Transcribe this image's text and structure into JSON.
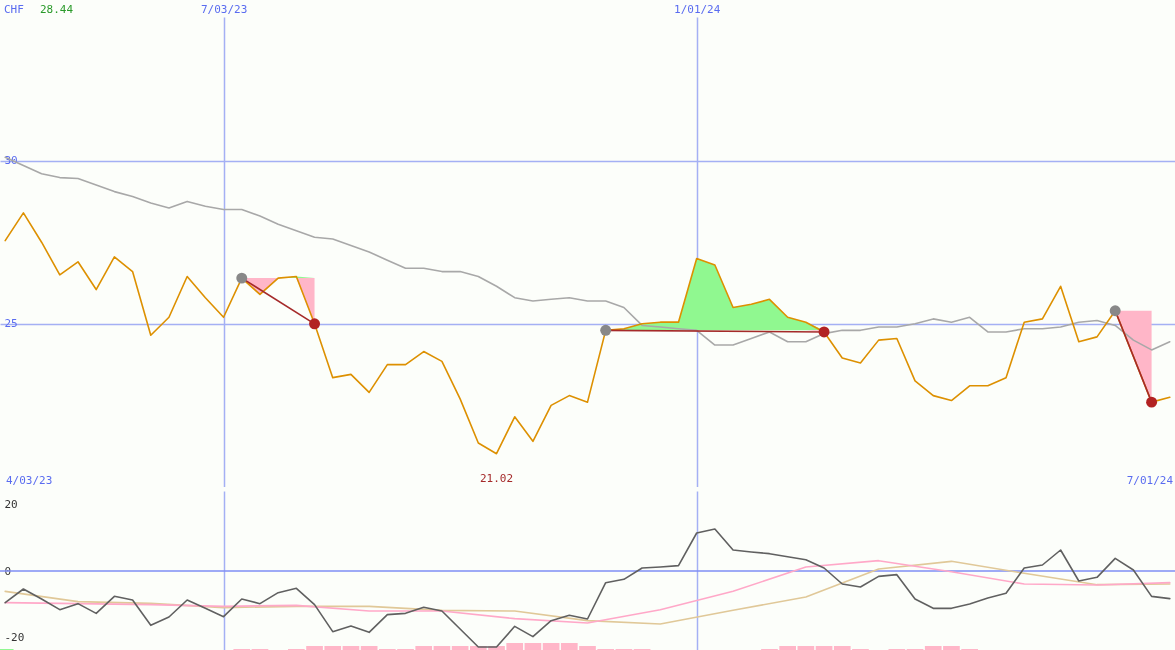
{
  "chart_data": [
    {
      "type": "line",
      "ylabel": "CHF",
      "annotations": [
        "28.44",
        "4/03/23",
        "7/01/24",
        {
          "text": "21.02",
          "x": "2023-10-16",
          "y": 21.02
        }
      ],
      "x": [
        "2023-04-10",
        "2023-04-17",
        "2023-04-24",
        "2023-05-01",
        "2023-05-08",
        "2023-05-15",
        "2023-05-22",
        "2023-05-29",
        "2023-06-05",
        "2023-06-12",
        "2023-06-19",
        "2023-06-26",
        "2023-07-03",
        "2023-07-10",
        "2023-07-17",
        "2023-07-24",
        "2023-07-31",
        "2023-08-07",
        "2023-08-14",
        "2023-08-21",
        "2023-08-28",
        "2023-09-04",
        "2023-09-11",
        "2023-09-18",
        "2023-09-25",
        "2023-10-02",
        "2023-10-09",
        "2023-10-16",
        "2023-10-23",
        "2023-10-30",
        "2023-11-06",
        "2023-11-13",
        "2023-11-20",
        "2023-11-27",
        "2023-12-04",
        "2023-12-11",
        "2023-12-18",
        "2023-12-25",
        "2024-01-01",
        "2024-01-08",
        "2024-01-15",
        "2024-01-22",
        "2024-01-29",
        "2024-02-05",
        "2024-02-12",
        "2024-02-19",
        "2024-02-26",
        "2024-03-04",
        "2024-03-11",
        "2024-03-18",
        "2024-03-25",
        "2024-04-01",
        "2024-04-08",
        "2024-04-15",
        "2024-04-22",
        "2024-04-29",
        "2024-05-06",
        "2024-05-13",
        "2024-05-20",
        "2024-05-27",
        "2024-06-03",
        "2024-06-10",
        "2024-06-17",
        "2024-06-24",
        "2024-07-01"
      ],
      "series": [
        {
          "color": "#a8a8a8",
          "values": [
            30.1,
            29.85,
            29.6,
            29.48,
            29.45,
            29.25,
            29.05,
            28.9,
            28.7,
            28.55,
            28.75,
            28.6,
            28.5,
            28.5,
            28.3,
            28.05,
            27.85,
            27.65,
            27.6,
            27.4,
            27.2,
            26.95,
            26.7,
            26.7,
            26.6,
            26.6,
            26.45,
            26.15,
            25.8,
            25.7,
            25.75,
            25.8,
            25.7,
            25.7,
            25.5,
            24.95,
            24.9,
            24.85,
            24.8,
            24.35,
            24.35,
            24.55,
            24.75,
            24.45,
            24.45,
            24.7,
            24.8,
            24.8,
            24.9,
            24.9,
            25.0,
            25.15,
            25.05,
            25.2,
            24.75,
            24.75,
            24.85,
            24.85,
            24.9,
            25.05,
            25.1,
            24.95,
            24.5,
            24.2,
            24.45
          ]
        },
        {
          "color": "#dd9000",
          "values": [
            27.55,
            28.4,
            27.5,
            26.5,
            26.9,
            26.05,
            27.05,
            26.6,
            24.65,
            25.2,
            26.45,
            25.8,
            25.2,
            26.4,
            25.9,
            26.4,
            26.45,
            25.0,
            23.35,
            23.45,
            22.9,
            23.75,
            23.75,
            24.15,
            23.85,
            22.7,
            21.35,
            21.02,
            22.15,
            21.4,
            22.5,
            22.8,
            22.6,
            24.8,
            24.85,
            25.0,
            25.05,
            25.05,
            27.0,
            26.8,
            25.5,
            25.6,
            25.75,
            25.2,
            25.05,
            24.75,
            23.95,
            23.8,
            24.5,
            24.55,
            23.25,
            22.8,
            22.65,
            23.1,
            23.1,
            23.35,
            25.05,
            25.15,
            26.15,
            24.45,
            24.6,
            25.4,
            24.0,
            22.6,
            22.75
          ]
        },
        {
          "color": "#a52a2a",
          "x": [
            "2023-07-10",
            "2023-08-07"
          ],
          "values": [
            26.4,
            25.0
          ]
        },
        {
          "color": "#a52a2a",
          "x": [
            "2023-11-27",
            "2024-02-19"
          ],
          "values": [
            24.8,
            24.75
          ]
        },
        {
          "color": "#a52a2a",
          "x": [
            "2024-06-10",
            "2024-06-24"
          ],
          "values": [
            25.4,
            22.6
          ]
        },
        {
          "type": "scatter",
          "color": "#888888",
          "x": [
            "2023-07-10",
            "2023-11-27",
            "2024-06-10"
          ],
          "values": [
            26.4,
            24.8,
            25.4
          ]
        },
        {
          "type": "scatter",
          "color": "#b22222",
          "x": [
            "2023-08-07",
            "2024-02-19",
            "2024-06-24"
          ],
          "values": [
            25.0,
            24.75,
            22.6
          ]
        }
      ],
      "xlim": [
        "2023-04-08",
        "2024-07-03"
      ],
      "xticks": [
        {
          "value": "2023-07-03",
          "label": "7/03/23"
        },
        {
          "value": "2024-01-01",
          "label": "1/01/24"
        }
      ],
      "ylim": [
        20,
        34.4
      ],
      "yticks": [
        25,
        30
      ],
      "grid": true
    },
    {
      "type": "line",
      "tick_labels": "y",
      "x": [
        "2023-04-10",
        "2023-04-17",
        "2023-04-24",
        "2023-05-01",
        "2023-05-08",
        "2023-05-15",
        "2023-05-22",
        "2023-05-29",
        "2023-06-05",
        "2023-06-12",
        "2023-06-19",
        "2023-06-26",
        "2023-07-03",
        "2023-07-10",
        "2023-07-17",
        "2023-07-24",
        "2023-07-31",
        "2023-08-07",
        "2023-08-14",
        "2023-08-21",
        "2023-08-28",
        "2023-09-04",
        "2023-09-11",
        "2023-09-18",
        "2023-09-25",
        "2023-10-02",
        "2023-10-09",
        "2023-10-16",
        "2023-10-23",
        "2023-10-30",
        "2023-11-06",
        "2023-11-13",
        "2023-11-20",
        "2023-11-27",
        "2023-12-04",
        "2023-12-11",
        "2023-12-18",
        "2023-12-25",
        "2024-01-01",
        "2024-01-08",
        "2024-01-15",
        "2024-01-22",
        "2024-01-29",
        "2024-02-05",
        "2024-02-12",
        "2024-02-19",
        "2024-02-26",
        "2024-03-04",
        "2024-03-11",
        "2024-03-18",
        "2024-03-25",
        "2024-04-01",
        "2024-04-08",
        "2024-04-15",
        "2024-04-22",
        "2024-04-29",
        "2024-05-06",
        "2024-05-13",
        "2024-05-20",
        "2024-05-27",
        "2024-06-03",
        "2024-06-10",
        "2024-06-17",
        "2024-06-24",
        "2024-07-01"
      ],
      "series": [
        {
          "type": "bar",
          "x": [
            "2023-04-10",
            "2023-07-10",
            "2023-07-17",
            "2023-07-31",
            "2023-08-07",
            "2023-08-14",
            "2023-08-21",
            "2023-08-28",
            "2023-09-04",
            "2023-09-11",
            "2023-09-18",
            "2023-09-25",
            "2023-10-02",
            "2023-10-09",
            "2023-10-16",
            "2023-10-23",
            "2023-10-30",
            "2023-11-06",
            "2023-11-13",
            "2023-11-20",
            "2023-11-27",
            "2023-12-04",
            "2023-12-11",
            "2024-01-29",
            "2024-02-05",
            "2024-02-12",
            "2024-02-19",
            "2024-02-26",
            "2024-03-04",
            "2024-03-18",
            "2024-03-25",
            "2024-04-01",
            "2024-04-08",
            "2024-04-15"
          ],
          "values": [
            0.6,
            0.6,
            0.6,
            0.6,
            1.5,
            1.5,
            1.5,
            1.5,
            0.6,
            0.6,
            1.5,
            1.5,
            1.5,
            1.5,
            1.5,
            2.4,
            2.4,
            2.4,
            2.4,
            1.5,
            0.6,
            0.6,
            0.6,
            0.6,
            1.5,
            1.5,
            1.5,
            1.5,
            0.6,
            0.6,
            0.6,
            1.5,
            1.5,
            0.6
          ],
          "base": [
            -24,
            -24,
            -24,
            -24,
            -24,
            -24,
            -24,
            -24,
            -24,
            -24,
            -24,
            -24,
            -24,
            -24,
            -24,
            -24,
            -24,
            -24,
            -24,
            -24,
            -24,
            -24,
            -24,
            -24,
            -24,
            -24,
            -24,
            -24,
            -24,
            -24,
            -24,
            -24,
            -24,
            -24
          ],
          "colors": [
            "#90f890",
            "#ffb6c8",
            "#ffb6c8",
            "#ffb6c8",
            "#ffb6c8",
            "#ffb6c8",
            "#ffb6c8",
            "#ffb6c8",
            "#ffb6c8",
            "#ffb6c8",
            "#ffb6c8",
            "#ffb6c8",
            "#ffb6c8",
            "#ffb6c8",
            "#ffb6c8",
            "#ffb6c8",
            "#ffb6c8",
            "#ffb6c8",
            "#ffb6c8",
            "#ffb6c8",
            "#ffb6c8",
            "#ffb6c8",
            "#ffb6c8",
            "#ffb6c8",
            "#ffb6c8",
            "#ffb6c8",
            "#ffb6c8",
            "#ffb6c8",
            "#ffb6c8",
            "#ffb6c8",
            "#ffb6c8",
            "#ffb6c8",
            "#ffb6c8",
            "#ffb6c8"
          ]
        },
        {
          "color": "#e0c898",
          "x": [
            "2023-04-10",
            "2023-05-08",
            "2023-06-05",
            "2023-07-03",
            "2023-07-31",
            "2023-08-28",
            "2023-09-25",
            "2023-10-23",
            "2023-11-20",
            "2023-12-18",
            "2024-01-15",
            "2024-02-12",
            "2024-03-11",
            "2024-04-08",
            "2024-05-06",
            "2024-06-03",
            "2024-07-01"
          ],
          "values": [
            -6.1,
            -9.2,
            -9.7,
            -11.0,
            -10.6,
            -10.6,
            -11.8,
            -12.0,
            -14.9,
            -15.9,
            -11.8,
            -7.8,
            0.6,
            2.9,
            -0.7,
            -4.1,
            -3.9
          ]
        },
        {
          "color": "#ffa8c8",
          "x": [
            "2023-04-10",
            "2023-05-08",
            "2023-06-05",
            "2023-07-03",
            "2023-07-31",
            "2023-08-28",
            "2023-09-25",
            "2023-10-23",
            "2023-11-20",
            "2023-12-18",
            "2024-01-15",
            "2024-02-12",
            "2024-03-11",
            "2024-04-08",
            "2024-05-06",
            "2024-06-03",
            "2024-07-01"
          ],
          "values": [
            -9.5,
            -9.8,
            -10.1,
            -10.6,
            -10.3,
            -12.0,
            -12.0,
            -14.3,
            -15.6,
            -11.6,
            -6.1,
            1.2,
            3.1,
            -0.2,
            -3.9,
            -4.2,
            -3.5
          ]
        },
        {
          "color": "#606060",
          "values": [
            -9.5,
            -5.4,
            -8.4,
            -11.6,
            -9.8,
            -12.7,
            -7.6,
            -8.7,
            -16.3,
            -13.8,
            -8.7,
            -11.2,
            -13.7,
            -8.4,
            -9.8,
            -6.5,
            -5.2,
            -10.1,
            -18.2,
            -16.5,
            -18.4,
            -13.1,
            -12.7,
            -10.9,
            -12.0,
            -17.4,
            -22.8,
            -22.8,
            -16.6,
            -19.7,
            -14.9,
            -13.3,
            -14.4,
            -3.5,
            -2.5,
            0.9,
            1.2,
            1.6,
            11.4,
            12.6,
            6.3,
            5.7,
            5.2,
            4.3,
            3.4,
            0.9,
            -3.9,
            -4.8,
            -1.6,
            -1.1,
            -8.4,
            -11.2,
            -11.2,
            -9.9,
            -8.1,
            -6.7,
            0.9,
            1.8,
            6.3,
            -3.0,
            -1.9,
            3.8,
            0.3,
            -7.6,
            -8.3
          ]
        }
      ],
      "xlim": [
        "2023-04-08",
        "2024-07-03"
      ],
      "xticks": [
        {
          "value": "2023-07-03",
          "label": null
        },
        {
          "value": "2024-01-01",
          "label": null
        }
      ],
      "ylim": [
        -24,
        24
      ],
      "yticks": [
        -20,
        0,
        20
      ],
      "grid": "x",
      "ref_lines": [
        {
          "axis": "y",
          "value": 0,
          "color": "#7f8ef4"
        }
      ]
    }
  ]
}
